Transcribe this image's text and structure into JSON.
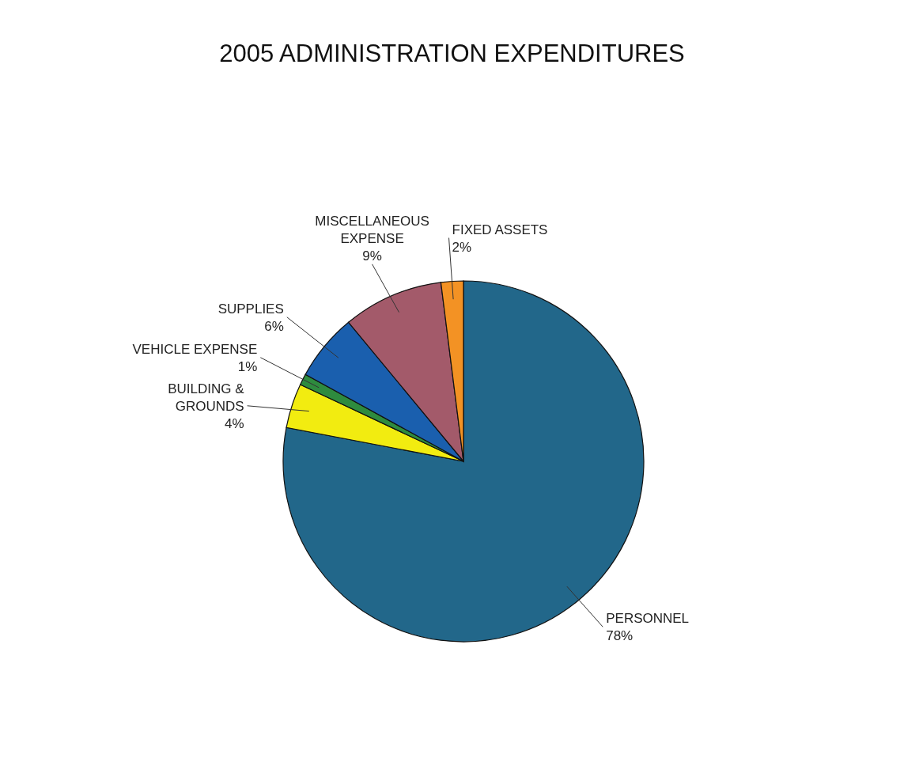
{
  "chart_data": {
    "type": "pie",
    "title": "2005 ADMINISTRATION EXPENDITURES",
    "categories": [
      "PERSONNEL",
      "BUILDING &\nGROUNDS",
      "VEHICLE EXPENSE",
      "SUPPLIES",
      "MISCELLANEOUS\nEXPENSE",
      "FIXED ASSETS"
    ],
    "values": [
      78,
      4,
      1,
      6,
      9,
      2
    ],
    "value_labels": [
      "78%",
      "4%",
      "1%",
      "6%",
      "9%",
      "2%"
    ],
    "colors": [
      "#22678a",
      "#f2ec10",
      "#2e8b3e",
      "#1a5fae",
      "#a35a6a",
      "#f39224"
    ],
    "legend": false
  }
}
